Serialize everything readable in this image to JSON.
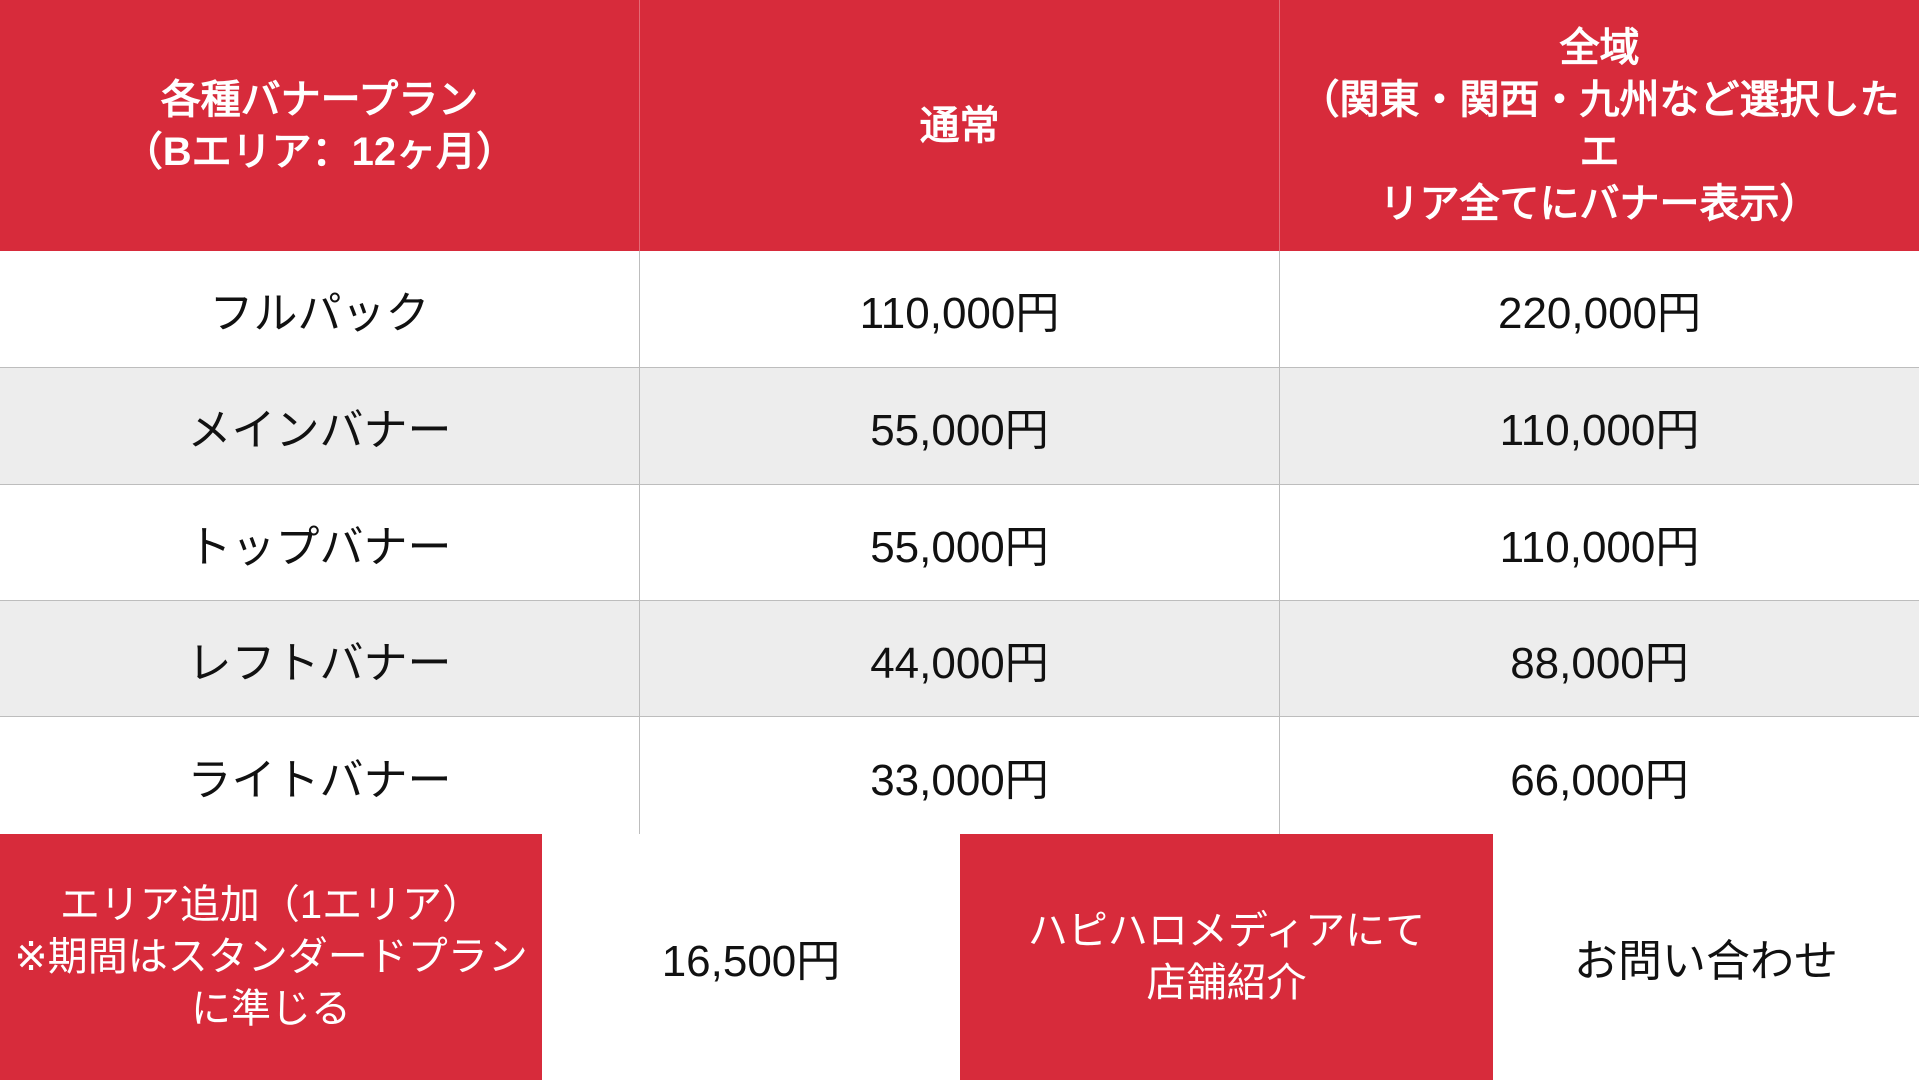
{
  "header": {
    "plan": "各種バナープラン\n（Bエリア：12ヶ月）",
    "normal": "通常",
    "all": "全域\n（関東・関西・九州など選択したエ\nリア全てにバナー表示）"
  },
  "rows": [
    {
      "name": "フルパック",
      "normal": "110,000円",
      "all": "220,000円"
    },
    {
      "name": "メインバナー",
      "normal": "55,000円",
      "all": "110,000円"
    },
    {
      "name": "トップバナー",
      "normal": "55,000円",
      "all": "110,000円"
    },
    {
      "name": "レフトバナー",
      "normal": "44,000円",
      "all": "88,000円"
    },
    {
      "name": "ライトバナー",
      "normal": "33,000円",
      "all": "66,000円"
    }
  ],
  "footer": {
    "area_add": "エリア追加（1エリア）\n※期間はスタンダードプラン\nに準じる",
    "area_add_price": "16,500円",
    "store": "ハピハロメディアにて\n店舗紹介",
    "store_price": "お問い合わせ"
  },
  "colors": {
    "accent": "#d72b3b",
    "stripe": "#ededed"
  }
}
